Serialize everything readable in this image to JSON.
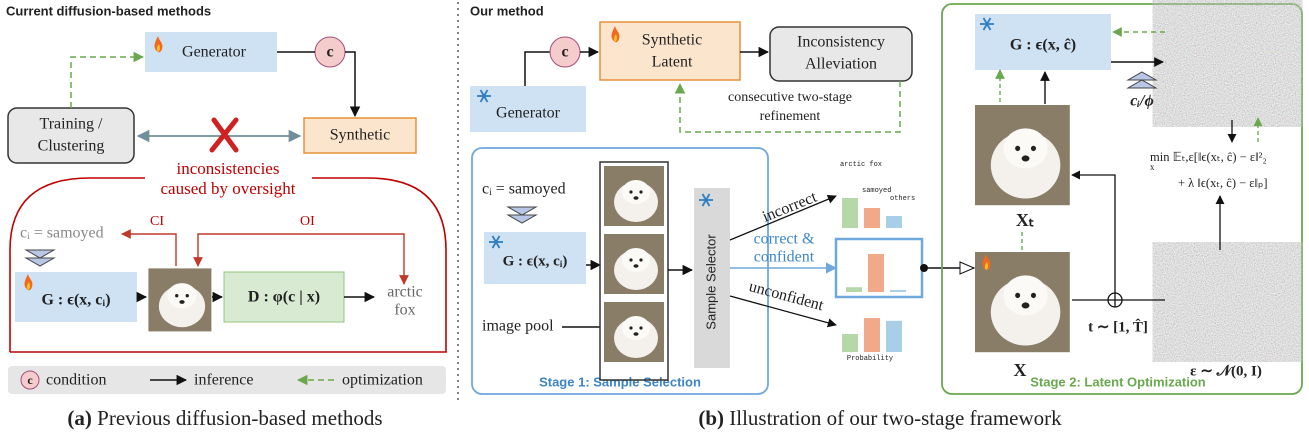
{
  "left": {
    "title": "Current diffusion-based methods",
    "generator": "Generator",
    "condition": "c",
    "training": [
      "Training /",
      "Clustering"
    ],
    "synthetic": "Synthetic",
    "inconsistency": [
      "inconsistencies",
      "caused by oversight"
    ],
    "class_text": "cᵢ = samoyed",
    "ci": "CI",
    "oi": "OI",
    "generator_fn": "G : ϵ(x, cᵢ)",
    "discriminator_fn": "D : φ(c | x)",
    "prediction": [
      "arctic",
      "fox"
    ],
    "legend": {
      "condition_symbol": "c",
      "condition": "condition",
      "inference": "inference",
      "optimization": "optimization"
    },
    "caption": {
      "label": "(a)",
      "text": "Previous diffusion-based methods"
    }
  },
  "right": {
    "title": "Our method",
    "generator": "Generator",
    "condition": "c",
    "latent": [
      "Synthetic",
      "Latent"
    ],
    "alleviation": [
      "Inconsistency",
      "Alleviation"
    ],
    "refinement": [
      "consecutive two-stage",
      "refinement"
    ],
    "stage1": {
      "title": "Stage 1: Sample Selection",
      "class_text": "cᵢ = samoyed",
      "generator_fn": "G : ϵ(x, cᵢ)",
      "pool": "image pool",
      "selector": "Sample Selector",
      "branches": [
        "incorrect",
        "correct &",
        "confident",
        "unconfident"
      ],
      "bar_labels": [
        "arctic fox",
        "samoyed",
        "others"
      ],
      "axis_label": "Probability",
      "bar_colors": [
        "#b6d7a8",
        "#f1a98a",
        "#a9cfe8"
      ],
      "charts": [
        {
          "values": [
            0.75,
            0.5,
            0.3
          ]
        },
        {
          "values": [
            0.12,
            0.95,
            0.05
          ]
        },
        {
          "values": [
            0.45,
            0.85,
            0.78
          ]
        }
      ]
    },
    "stage2": {
      "title": "Stage 2: Latent Optimization",
      "generator_fn": "G : ϵ(x, ĉ)",
      "condition_swap": "cᵢ/ϕ",
      "xt": "Xₜ",
      "x": "X",
      "timestep": "t ∼ [1, T̂]",
      "noise": "ε ∼ 𝒩(0, I)",
      "objective": [
        "min  𝔼ₜ,ε[‖ϵ(xₜ, ĉ) − ε‖²₂",
        "+ λ ‖ϵ(xₜ, ĉ) − ε‖ₚ]"
      ],
      "objective_sub": "x"
    },
    "caption": {
      "label": "(b)",
      "text": "Illustration of our two-stage framework"
    }
  }
}
